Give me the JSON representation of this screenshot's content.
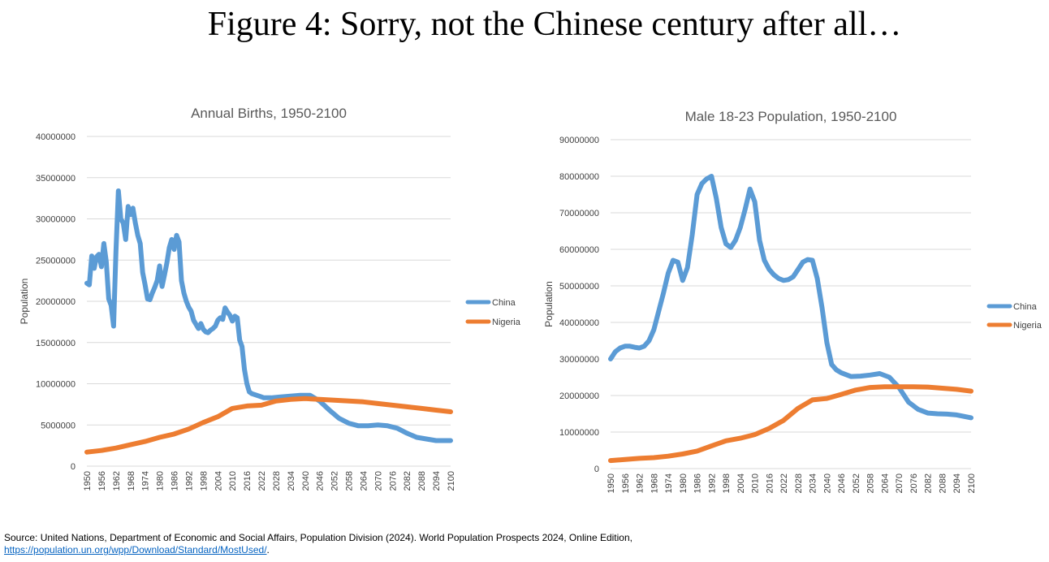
{
  "figure_title": "Figure 4: Sorry, not the Chinese century after all…",
  "source": {
    "text": "Source: United Nations, Department of Economic and Social Affairs, Population Division (2024). World Population Prospects 2024, Online Edition,",
    "link": "https://population.un.org/wpp/Download/Standard/MostUsed/",
    "trailing": "."
  },
  "colors": {
    "china": "#5b9bd5",
    "nigeria": "#ed7d31",
    "grid": "#d9d9d9",
    "axis_text": "#404040",
    "title_text": "#595959"
  },
  "chart_data": [
    {
      "type": "line",
      "title": "Annual Births, 1950-2100",
      "xlabel": "",
      "ylabel": "Population",
      "xlim": [
        1950,
        2100
      ],
      "ylim": [
        0,
        40000000
      ],
      "yticks": [
        0,
        5000000,
        10000000,
        15000000,
        20000000,
        25000000,
        30000000,
        35000000,
        40000000
      ],
      "xticks": [
        1950,
        1956,
        1962,
        1968,
        1974,
        1980,
        1986,
        1992,
        1998,
        2004,
        2010,
        2016,
        2022,
        2028,
        2034,
        2040,
        2046,
        2052,
        2058,
        2064,
        2070,
        2076,
        2082,
        2088,
        2094,
        2100
      ],
      "grid": true,
      "legend": "right",
      "series": [
        {
          "name": "China",
          "color": "#5b9bd5",
          "x": [
            1950,
            1951,
            1952,
            1953,
            1954,
            1955,
            1956,
            1957,
            1958,
            1959,
            1960,
            1961,
            1962,
            1963,
            1964,
            1965,
            1966,
            1967,
            1968,
            1969,
            1970,
            1971,
            1972,
            1973,
            1974,
            1975,
            1976,
            1977,
            1978,
            1979,
            1980,
            1981,
            1982,
            1983,
            1984,
            1985,
            1986,
            1987,
            1988,
            1989,
            1990,
            1991,
            1992,
            1993,
            1994,
            1995,
            1996,
            1997,
            1998,
            1999,
            2000,
            2001,
            2002,
            2003,
            2004,
            2005,
            2006,
            2007,
            2008,
            2009,
            2010,
            2011,
            2012,
            2013,
            2014,
            2015,
            2016,
            2017,
            2018,
            2019,
            2020,
            2021,
            2022,
            2023,
            2026,
            2030,
            2034,
            2038,
            2042,
            2046,
            2050,
            2054,
            2058,
            2062,
            2066,
            2070,
            2074,
            2078,
            2082,
            2086,
            2090,
            2094,
            2100
          ],
          "y": [
            22200000,
            22000000,
            25500000,
            24000000,
            25400000,
            25700000,
            24200000,
            27000000,
            24800000,
            20300000,
            19500000,
            17000000,
            26000000,
            33400000,
            30000000,
            29500000,
            27500000,
            31500000,
            30500000,
            31300000,
            29500000,
            28000000,
            27000000,
            23500000,
            22000000,
            20300000,
            20200000,
            21000000,
            21700000,
            22500000,
            24300000,
            21800000,
            23200000,
            24700000,
            26500000,
            27500000,
            26300000,
            28000000,
            27200000,
            22500000,
            21000000,
            20000000,
            19300000,
            18800000,
            17700000,
            17200000,
            16700000,
            17300000,
            16600000,
            16300000,
            16200000,
            16500000,
            16700000,
            17000000,
            17700000,
            18000000,
            17800000,
            19200000,
            18700000,
            18300000,
            17600000,
            18200000,
            18000000,
            15300000,
            14500000,
            11700000,
            10000000,
            9000000,
            8800000,
            8700000,
            8600000,
            8500000,
            8400000,
            8300000,
            8300000,
            8400000,
            8500000,
            8600000,
            8600000,
            7900000,
            6800000,
            5800000,
            5200000,
            4900000,
            4900000,
            5000000,
            4900000,
            4600000,
            4000000,
            3500000,
            3300000,
            3100000,
            3100000
          ]
        },
        {
          "name": "Nigeria",
          "color": "#ed7d31",
          "x": [
            1950,
            1956,
            1962,
            1968,
            1974,
            1980,
            1986,
            1992,
            1998,
            2004,
            2010,
            2016,
            2022,
            2028,
            2034,
            2040,
            2046,
            2052,
            2058,
            2064,
            2070,
            2076,
            2082,
            2088,
            2094,
            2100
          ],
          "y": [
            1700000,
            1900000,
            2200000,
            2600000,
            3000000,
            3500000,
            3900000,
            4500000,
            5300000,
            6000000,
            7000000,
            7300000,
            7400000,
            7900000,
            8100000,
            8200000,
            8100000,
            8000000,
            7900000,
            7800000,
            7600000,
            7400000,
            7200000,
            7000000,
            6800000,
            6600000
          ]
        }
      ]
    },
    {
      "type": "line",
      "title": "Male 18-23 Population, 1950-2100",
      "xlabel": "",
      "ylabel": "Population",
      "xlim": [
        1950,
        2100
      ],
      "ylim": [
        0,
        90000000
      ],
      "yticks": [
        0,
        10000000,
        20000000,
        30000000,
        40000000,
        50000000,
        60000000,
        70000000,
        80000000,
        90000000
      ],
      "xticks": [
        1950,
        1956,
        1962,
        1968,
        1974,
        1980,
        1986,
        1992,
        1998,
        2004,
        2010,
        2016,
        2022,
        2028,
        2034,
        2040,
        2046,
        2052,
        2058,
        2064,
        2070,
        2076,
        2082,
        2088,
        2094,
        2100
      ],
      "grid": true,
      "legend": "right",
      "series": [
        {
          "name": "China",
          "color": "#5b9bd5",
          "x": [
            1950,
            1952,
            1954,
            1956,
            1958,
            1960,
            1962,
            1964,
            1966,
            1968,
            1970,
            1972,
            1974,
            1976,
            1978,
            1980,
            1982,
            1984,
            1986,
            1988,
            1990,
            1992,
            1994,
            1996,
            1998,
            2000,
            2002,
            2004,
            2006,
            2008,
            2010,
            2012,
            2014,
            2016,
            2018,
            2020,
            2022,
            2024,
            2026,
            2028,
            2030,
            2032,
            2034,
            2036,
            2038,
            2040,
            2042,
            2044,
            2046,
            2050,
            2054,
            2058,
            2062,
            2066,
            2070,
            2074,
            2078,
            2082,
            2086,
            2090,
            2094,
            2100
          ],
          "y": [
            30000000,
            32000000,
            33000000,
            33500000,
            33500000,
            33200000,
            33000000,
            33500000,
            35000000,
            38000000,
            43000000,
            48000000,
            53500000,
            57000000,
            56500000,
            51500000,
            55000000,
            64000000,
            75000000,
            78000000,
            79300000,
            80000000,
            74000000,
            66000000,
            61500000,
            60500000,
            62500000,
            66000000,
            71000000,
            76500000,
            73000000,
            62500000,
            57000000,
            54500000,
            53000000,
            52000000,
            51500000,
            51700000,
            52500000,
            54500000,
            56500000,
            57200000,
            57000000,
            52000000,
            44000000,
            34500000,
            28500000,
            27000000,
            26200000,
            25200000,
            25300000,
            25600000,
            26000000,
            25000000,
            22200000,
            18200000,
            16200000,
            15200000,
            15000000,
            14900000,
            14700000,
            13900000
          ]
        },
        {
          "name": "Nigeria",
          "color": "#ed7d31",
          "x": [
            1950,
            1956,
            1962,
            1968,
            1974,
            1980,
            1986,
            1992,
            1998,
            2004,
            2010,
            2016,
            2022,
            2028,
            2034,
            2040,
            2046,
            2052,
            2058,
            2064,
            2070,
            2076,
            2082,
            2088,
            2094,
            2100
          ],
          "y": [
            2200000,
            2500000,
            2800000,
            3000000,
            3400000,
            4000000,
            4800000,
            6200000,
            7600000,
            8300000,
            9300000,
            11000000,
            13200000,
            16500000,
            18800000,
            19200000,
            20300000,
            21500000,
            22200000,
            22400000,
            22400000,
            22400000,
            22300000,
            22000000,
            21700000,
            21200000
          ]
        }
      ]
    }
  ]
}
